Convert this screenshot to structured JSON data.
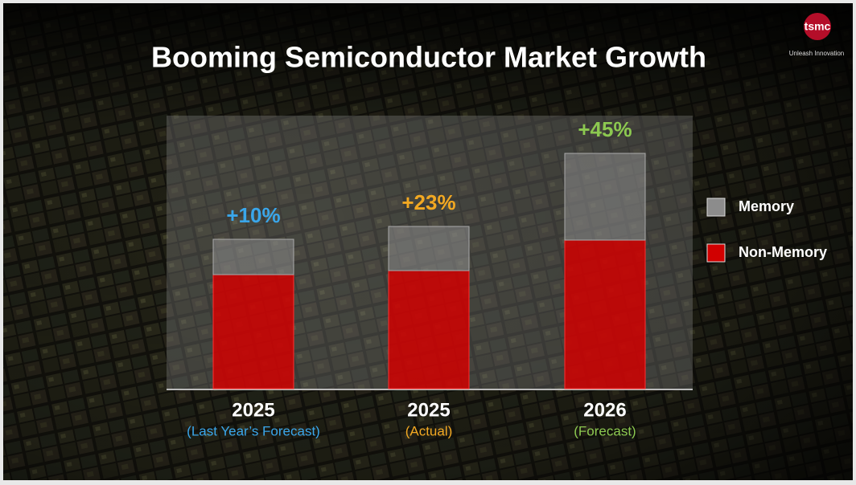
{
  "header": {
    "title": "Booming Semiconductor Market Growth",
    "logo": "tsmc",
    "tagline": "Unleash Innovation"
  },
  "chart_data": {
    "type": "bar",
    "stacked": true,
    "categories": [
      "2025",
      "2025",
      "2026"
    ],
    "subcategories": [
      "(Last Year’s Forecast)",
      "(Actual)",
      "(Forecast)"
    ],
    "accent_colors": [
      "#3aa6ea",
      "#f2a822",
      "#8cc850"
    ],
    "growth": {
      "values": [
        10,
        23,
        45
      ],
      "value_labels": [
        "+10%",
        "+23%",
        "+45%"
      ]
    },
    "series": [
      {
        "name": "Non-Memory",
        "color": "#d10000",
        "values": [
          142,
          147,
          185
        ]
      },
      {
        "name": "Memory",
        "color": "#8c8c8c",
        "values": [
          44,
          55,
          108
        ]
      }
    ],
    "ylim": [
      0,
      340
    ]
  }
}
